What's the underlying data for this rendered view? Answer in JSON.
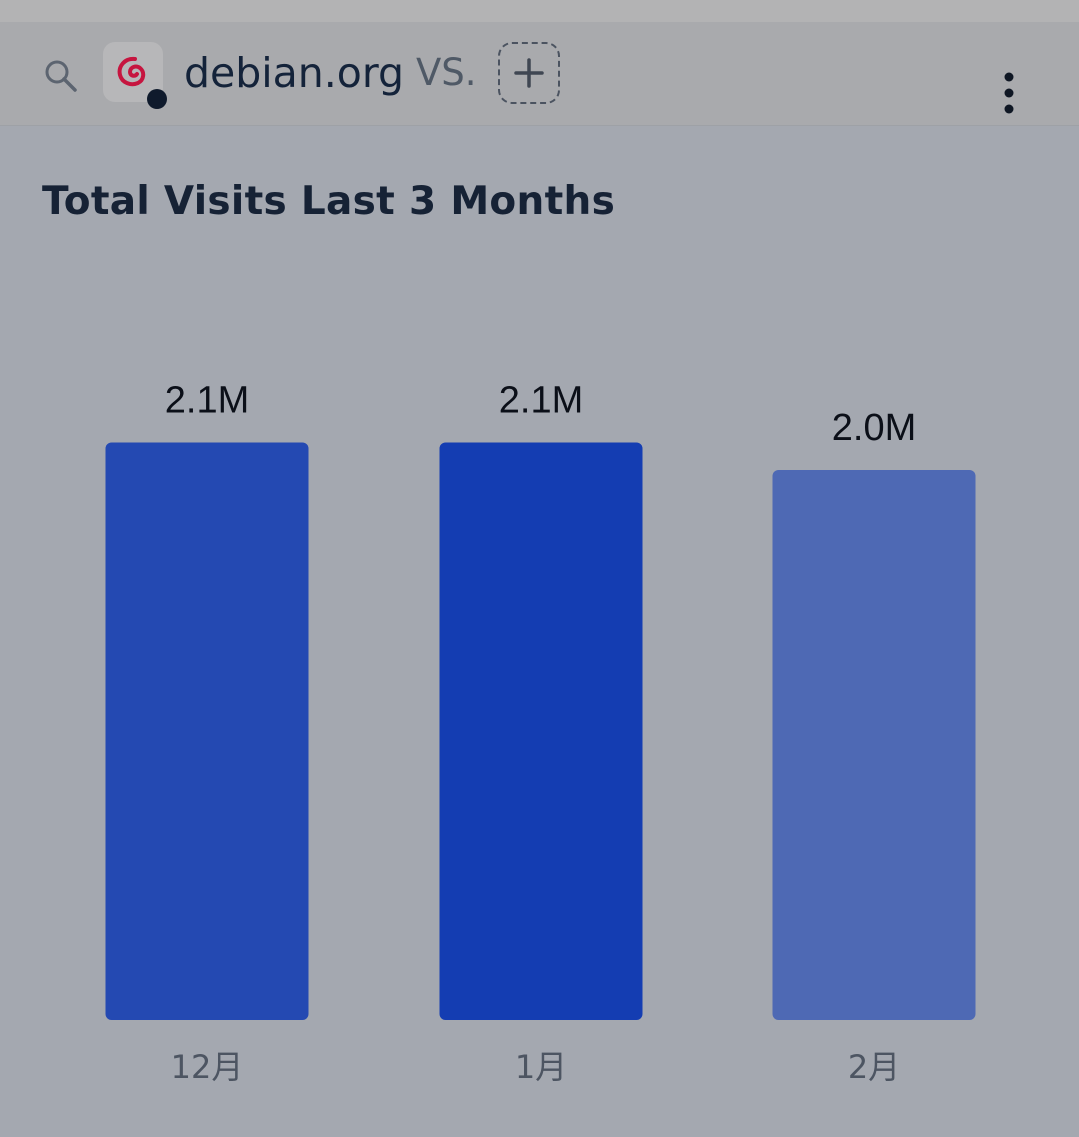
{
  "header": {
    "site": "debian.org",
    "vs_label": "VS."
  },
  "icons": {
    "search": "search-icon",
    "site_logo": "debian-logo-icon",
    "add": "plus-icon",
    "menu": "more-vertical-icon"
  },
  "chart_data": {
    "type": "bar",
    "title": "Total Visits Last 3 Months",
    "categories": [
      "12月",
      "1月",
      "2月"
    ],
    "values": [
      2.1,
      2.1,
      2.0
    ],
    "value_labels": [
      "2.1M",
      "2.1M",
      "2.0M"
    ],
    "unit": "M",
    "bar_colors": [
      "#2449b2",
      "#143db2",
      "#4e69b4"
    ],
    "grid": false,
    "legend": "none"
  },
  "colors": {
    "background": "#a4a8b0",
    "logo_red": "#c6153f"
  }
}
